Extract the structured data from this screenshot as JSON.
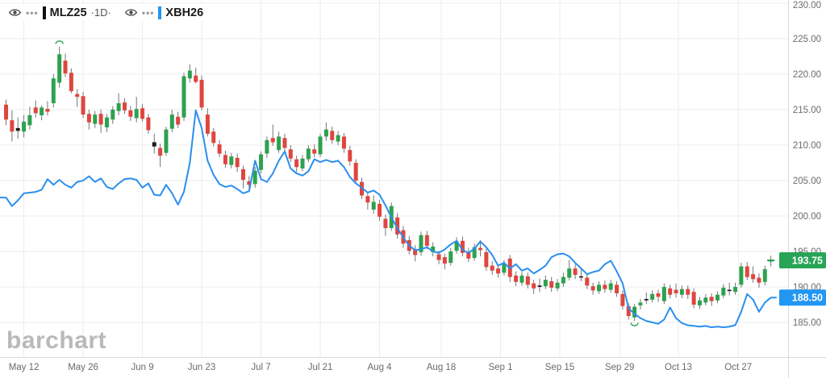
{
  "toolbar": {
    "series": [
      {
        "symbol": "MLZ25",
        "timeframe": "·1D·",
        "color": "#111111"
      },
      {
        "symbol": "XBH26",
        "timeframe": "",
        "color": "#2196F3"
      }
    ]
  },
  "logo_text": "barchart",
  "price_axis": {
    "labels": [
      "230.00",
      "225.00",
      "220.00",
      "215.00",
      "210.00",
      "205.00",
      "200.00",
      "195.00",
      "190.00",
      "185.00"
    ],
    "values": [
      230,
      225,
      220,
      215,
      210,
      205,
      200,
      195,
      190,
      185
    ]
  },
  "time_axis": {
    "labels": [
      "May 12",
      "May 26",
      "Jun 9",
      "Jun 23",
      "Jul 7",
      "Jul 21",
      "Aug 4",
      "Aug 18",
      "Sep 1",
      "Sep 15",
      "Sep 29",
      "Oct 13",
      "Oct 27"
    ]
  },
  "badges": [
    {
      "label": "193.75",
      "value": 193.75,
      "bg": "#27A455",
      "series": "MLZ25"
    },
    {
      "label": "188.50",
      "value": 188.5,
      "bg": "#2196F3",
      "series": "XBH26"
    }
  ],
  "colors": {
    "up": "#2CA24E",
    "down": "#E0453F",
    "neutral": "#1c1c1c",
    "wick": "#757575",
    "line": "#2A8FEE",
    "grid": "#ececec",
    "axis_border": "#d9d9d9",
    "axis_text": "#6b6b6b",
    "annotation": "#27A455"
  },
  "chart_data": {
    "type": "candlestick+line",
    "title": "MLZ25 1D with XBH26 comparison line",
    "ylim": [
      183.5,
      230.5
    ],
    "grid": true,
    "price_step": 5,
    "tick_indices": [
      3,
      13,
      23,
      33,
      43,
      53,
      63,
      73.4,
      83.4,
      93.4,
      103.5,
      113.4,
      123.5
    ],
    "candles": {
      "name": "MLZ25",
      "black_indices": [
        2,
        25,
        90,
        97,
        108,
        122
      ],
      "ohlc": [
        [
          215.7,
          216.4,
          212.8,
          213.6
        ],
        [
          213.5,
          214.9,
          210.5,
          211.9
        ],
        [
          212.4,
          213.9,
          210.9,
          212.0
        ],
        [
          211.9,
          214.2,
          211.1,
          213.3
        ],
        [
          212.8,
          215.4,
          212.2,
          214.2
        ],
        [
          215.3,
          216.3,
          213.9,
          214.5
        ],
        [
          214.2,
          215.6,
          213.5,
          215.3
        ],
        [
          215.1,
          216.2,
          214.2,
          214.7
        ],
        [
          215.9,
          220.0,
          215.3,
          219.4
        ],
        [
          218.8,
          223.9,
          218.1,
          222.8
        ],
        [
          221.9,
          222.9,
          219.6,
          220.1
        ],
        [
          220.2,
          220.8,
          217.3,
          217.6
        ],
        [
          217.2,
          217.9,
          215.4,
          216.8
        ],
        [
          216.9,
          217.5,
          213.8,
          214.3
        ],
        [
          214.4,
          215.0,
          212.2,
          213.2
        ],
        [
          213.0,
          214.8,
          212.4,
          214.3
        ],
        [
          214.4,
          215.0,
          211.7,
          212.9
        ],
        [
          212.5,
          214.4,
          211.8,
          213.9
        ],
        [
          213.6,
          215.5,
          213.0,
          215.0
        ],
        [
          214.8,
          217.3,
          214.2,
          215.9
        ],
        [
          216.0,
          216.6,
          214.4,
          214.9
        ],
        [
          214.9,
          215.5,
          213.4,
          214.0
        ],
        [
          213.8,
          216.8,
          213.2,
          215.1
        ],
        [
          215.2,
          215.8,
          213.3,
          213.7
        ],
        [
          213.9,
          214.4,
          211.6,
          212.1
        ],
        [
          210.4,
          211.6,
          208.8,
          209.8
        ],
        [
          209.6,
          210.2,
          206.9,
          208.5
        ],
        [
          208.9,
          212.6,
          208.5,
          212.2
        ],
        [
          212.3,
          215.0,
          211.8,
          214.3
        ],
        [
          214.0,
          214.7,
          212.4,
          212.9
        ],
        [
          213.9,
          220.2,
          213.4,
          219.7
        ],
        [
          219.4,
          221.4,
          218.8,
          220.5
        ],
        [
          219.8,
          220.9,
          218.7,
          218.9
        ],
        [
          219.2,
          219.8,
          214.9,
          215.3
        ],
        [
          214.3,
          215.2,
          211.2,
          211.6
        ],
        [
          211.9,
          212.4,
          209.8,
          210.3
        ],
        [
          210.1,
          210.7,
          208.3,
          208.8
        ],
        [
          208.6,
          209.2,
          206.8,
          207.3
        ],
        [
          207.2,
          208.9,
          206.7,
          208.4
        ],
        [
          208.2,
          208.8,
          206.2,
          206.9
        ],
        [
          206.6,
          207.1,
          203.9,
          205.1
        ],
        [
          204.9,
          205.6,
          203.4,
          204.4
        ],
        [
          204.5,
          206.9,
          204.0,
          206.4
        ],
        [
          206.5,
          209.1,
          206.0,
          208.7
        ],
        [
          208.8,
          211.2,
          208.2,
          210.7
        ],
        [
          211.0,
          212.9,
          209.9,
          210.4
        ],
        [
          209.3,
          211.9,
          208.9,
          211.2
        ],
        [
          211.0,
          211.6,
          209.1,
          209.6
        ],
        [
          209.4,
          210.0,
          207.6,
          208.1
        ],
        [
          208.0,
          208.5,
          206.2,
          206.9
        ],
        [
          206.7,
          208.6,
          206.3,
          208.1
        ],
        [
          208.0,
          210.0,
          207.6,
          209.5
        ],
        [
          209.4,
          210.1,
          208.3,
          208.8
        ],
        [
          208.7,
          211.6,
          208.3,
          211.2
        ],
        [
          211.2,
          213.2,
          210.6,
          212.2
        ],
        [
          212.0,
          212.6,
          210.2,
          210.7
        ],
        [
          210.5,
          212.0,
          210.0,
          211.4
        ],
        [
          211.2,
          211.7,
          208.9,
          209.5
        ],
        [
          209.3,
          209.9,
          207.1,
          207.7
        ],
        [
          207.5,
          208.0,
          204.6,
          205.0
        ],
        [
          204.8,
          205.4,
          202.4,
          202.9
        ],
        [
          202.8,
          203.4,
          200.9,
          201.9
        ],
        [
          200.9,
          202.9,
          200.3,
          202.0
        ],
        [
          201.7,
          202.3,
          199.3,
          199.9
        ],
        [
          199.6,
          200.2,
          197.2,
          198.3
        ],
        [
          198.3,
          201.9,
          197.9,
          201.4
        ],
        [
          199.8,
          200.4,
          196.8,
          197.4
        ],
        [
          198.0,
          198.6,
          195.5,
          196.1
        ],
        [
          196.6,
          197.2,
          194.6,
          195.1
        ],
        [
          195.3,
          195.9,
          193.6,
          194.5
        ],
        [
          194.9,
          197.8,
          194.4,
          197.3
        ],
        [
          197.3,
          197.9,
          195.3,
          195.8
        ],
        [
          194.9,
          196.3,
          194.3,
          195.7
        ],
        [
          194.6,
          195.1,
          193.2,
          193.8
        ],
        [
          194.2,
          194.7,
          192.5,
          193.3
        ],
        [
          193.4,
          195.5,
          193.0,
          195.0
        ],
        [
          195.1,
          197.0,
          194.7,
          196.4
        ],
        [
          196.5,
          197.1,
          194.3,
          194.8
        ],
        [
          194.9,
          195.5,
          193.5,
          194.0
        ],
        [
          194.1,
          196.1,
          193.7,
          195.6
        ],
        [
          195.5,
          196.6,
          194.3,
          195.2
        ],
        [
          194.9,
          195.4,
          192.3,
          192.8
        ],
        [
          193.0,
          193.6,
          191.7,
          192.3
        ],
        [
          192.6,
          193.2,
          191.3,
          191.9
        ],
        [
          192.0,
          193.8,
          191.6,
          193.3
        ],
        [
          194.0,
          194.5,
          190.7,
          191.4
        ],
        [
          191.6,
          192.2,
          190.1,
          190.7
        ],
        [
          190.6,
          192.1,
          190.2,
          191.6
        ],
        [
          191.5,
          192.0,
          189.8,
          190.3
        ],
        [
          190.5,
          191.0,
          189.0,
          189.8
        ],
        [
          190.0,
          191.2,
          189.3,
          190.2
        ],
        [
          190.1,
          191.6,
          189.7,
          191.0
        ],
        [
          190.8,
          191.4,
          189.3,
          189.9
        ],
        [
          189.8,
          191.1,
          189.4,
          190.6
        ],
        [
          190.5,
          192.0,
          190.0,
          191.4
        ],
        [
          191.3,
          193.8,
          190.9,
          192.6
        ],
        [
          192.6,
          193.2,
          191.1,
          191.7
        ],
        [
          191.5,
          192.6,
          190.8,
          191.4
        ],
        [
          191.3,
          191.8,
          189.7,
          190.2
        ],
        [
          190.1,
          190.6,
          188.9,
          189.5
        ],
        [
          189.4,
          190.8,
          189.0,
          190.3
        ],
        [
          190.3,
          190.9,
          189.2,
          189.7
        ],
        [
          189.6,
          191.0,
          189.2,
          190.5
        ],
        [
          190.3,
          190.8,
          188.6,
          189.1
        ],
        [
          189.0,
          189.5,
          186.8,
          187.3
        ],
        [
          187.3,
          187.7,
          185.4,
          185.9
        ],
        [
          185.7,
          187.6,
          185.2,
          187.2
        ],
        [
          187.4,
          188.3,
          186.8,
          187.8
        ],
        [
          188.1,
          189.2,
          187.6,
          188.3
        ],
        [
          188.2,
          189.5,
          187.8,
          189.0
        ],
        [
          189.1,
          189.6,
          187.9,
          188.6
        ],
        [
          188.0,
          190.5,
          187.6,
          190.0
        ],
        [
          189.8,
          190.3,
          188.4,
          188.9
        ],
        [
          189.6,
          190.5,
          188.5,
          189.1
        ],
        [
          188.9,
          190.2,
          188.4,
          189.7
        ],
        [
          189.7,
          190.2,
          188.3,
          188.9
        ],
        [
          189.3,
          189.8,
          187.0,
          187.5
        ],
        [
          187.4,
          188.6,
          186.9,
          188.1
        ],
        [
          187.8,
          189.0,
          187.4,
          188.5
        ],
        [
          188.6,
          189.1,
          187.3,
          188.0
        ],
        [
          188.1,
          189.4,
          187.7,
          188.9
        ],
        [
          188.8,
          190.4,
          188.4,
          189.9
        ],
        [
          189.6,
          190.6,
          188.8,
          189.5
        ],
        [
          189.3,
          190.6,
          188.9,
          190.0
        ],
        [
          190.3,
          193.4,
          189.9,
          192.9
        ],
        [
          192.9,
          193.5,
          191.0,
          191.4
        ],
        [
          191.8,
          192.9,
          190.6,
          191.1
        ],
        [
          191.3,
          191.9,
          189.9,
          190.6
        ],
        [
          190.7,
          193.0,
          190.2,
          192.5
        ],
        [
          193.6,
          194.4,
          192.9,
          193.75
        ]
      ]
    },
    "line": {
      "name": "XBH26",
      "values": [
        202.6,
        201.4,
        202.2,
        203.2,
        203.3,
        203.4,
        203.7,
        205.2,
        204.4,
        205.1,
        204.4,
        204.0,
        204.8,
        205.0,
        205.6,
        204.8,
        205.3,
        204.1,
        203.8,
        204.6,
        205.2,
        205.3,
        205.1,
        204.0,
        204.6,
        203.0,
        202.9,
        204.4,
        203.2,
        201.6,
        203.4,
        207.5,
        214.9,
        212.4,
        207.8,
        205.8,
        204.5,
        204.1,
        204.3,
        203.8,
        203.2,
        203.5,
        207.8,
        205.2,
        204.8,
        206.0,
        207.8,
        209.1,
        206.7,
        206.0,
        205.7,
        206.3,
        208.0,
        207.6,
        207.9,
        207.6,
        207.8,
        206.9,
        205.5,
        204.6,
        204.0,
        203.3,
        203.6,
        203.0,
        201.5,
        199.8,
        198.3,
        197.0,
        195.8,
        195.2,
        195.3,
        195.6,
        195.0,
        194.8,
        195.3,
        196.0,
        196.5,
        195.2,
        194.8,
        195.4,
        196.4,
        195.6,
        194.5,
        193.0,
        193.4,
        192.6,
        193.2,
        192.3,
        192.6,
        191.9,
        192.4,
        193.0,
        194.2,
        194.6,
        194.7,
        194.3,
        193.4,
        192.6,
        191.8,
        192.1,
        192.3,
        193.2,
        193.7,
        192.2,
        190.5,
        187.0,
        186.2,
        185.6,
        185.2,
        185.0,
        184.8,
        185.4,
        187.1,
        185.6,
        184.9,
        184.6,
        184.5,
        184.4,
        184.5,
        184.3,
        184.4,
        184.3,
        184.4,
        184.6,
        186.5,
        189.0,
        188.2,
        186.5,
        187.8,
        188.5
      ]
    },
    "annotations": [
      {
        "type": "arc-cap",
        "index": 9,
        "price": 224.6,
        "meaning": "pattern-marker-top"
      },
      {
        "type": "arc-cup",
        "index": 106,
        "price": 184.6,
        "meaning": "pattern-marker-bottom"
      },
      {
        "type": "plus",
        "index": 129,
        "price": 193.75,
        "meaning": "last-price-marker"
      }
    ],
    "last_prices": {
      "MLZ25": 193.75,
      "XBH26": 188.5
    }
  }
}
